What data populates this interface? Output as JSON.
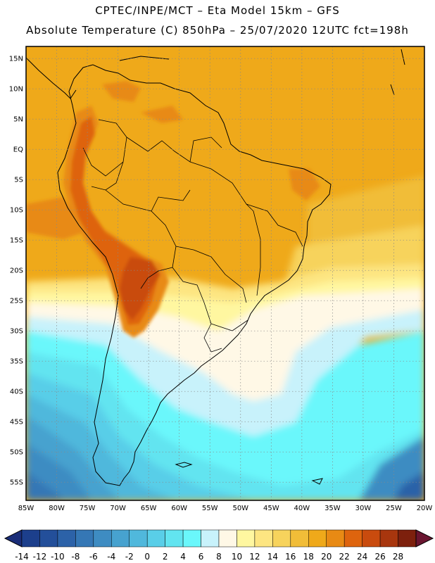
{
  "header": {
    "title_line1": "CPTEC/INPE/MCT –  Eta Model 15km – GFS",
    "title_line2": "Absolute Temperature (C) 850hPa – 25/07/2020 12UTC fct=198h"
  },
  "map": {
    "projection": "lat-lon",
    "lon_range": [
      -85,
      -20
    ],
    "lat_range": [
      -58,
      17
    ],
    "lat_ticks": [
      15,
      10,
      5,
      0,
      -5,
      -10,
      -15,
      -20,
      -25,
      -30,
      -35,
      -40,
      -45,
      -50,
      -55
    ],
    "lat_labels": [
      "15N",
      "10N",
      "5N",
      "EQ",
      "5S",
      "10S",
      "15S",
      "20S",
      "25S",
      "30S",
      "35S",
      "40S",
      "45S",
      "50S",
      "55S"
    ],
    "lon_ticks": [
      -85,
      -80,
      -75,
      -70,
      -65,
      -60,
      -55,
      -50,
      -45,
      -40,
      -35,
      -30,
      -25,
      -20
    ],
    "lon_labels": [
      "85W",
      "80W",
      "75W",
      "70W",
      "65W",
      "60W",
      "55W",
      "50W",
      "45W",
      "40W",
      "35W",
      "30W",
      "25W",
      "20W"
    ],
    "gridlines": "dotted"
  },
  "colorbar": {
    "values": [
      -14,
      -12,
      -10,
      -8,
      -6,
      -4,
      -2,
      0,
      2,
      4,
      6,
      8,
      10,
      12,
      14,
      16,
      18,
      20,
      22,
      24,
      26,
      28
    ],
    "labels": [
      "-14",
      "-12",
      "-10",
      "-8",
      "-6",
      "-4",
      "-2",
      "0",
      "2",
      "4",
      "6",
      "8",
      "10",
      "12",
      "14",
      "16",
      "18",
      "20",
      "22",
      "24",
      "26",
      "28"
    ],
    "colors": [
      "#1c3f8c",
      "#234f9a",
      "#2c62a8",
      "#3577b5",
      "#3e8cc2",
      "#47a2cf",
      "#50b8dc",
      "#59cee8",
      "#62e4f0",
      "#6af7fb",
      "#c8f2fb",
      "#fff8e6",
      "#fff7a0",
      "#fde581",
      "#f7d35c",
      "#f1bd38",
      "#efa91a",
      "#e88a14",
      "#de640e",
      "#c94b0e",
      "#a8360e",
      "#7d200d"
    ],
    "under_color": "#1a2d78",
    "over_color": "#6a1530"
  },
  "temperature_field": {
    "description_regions": [
      {
        "name": "tropical-warm",
        "range_c": [
          16,
          18
        ]
      },
      {
        "name": "andes-hot",
        "range_c": [
          20,
          24
        ]
      },
      {
        "name": "southern-ocean-cold",
        "range_c": [
          -10,
          -2
        ]
      }
    ]
  }
}
